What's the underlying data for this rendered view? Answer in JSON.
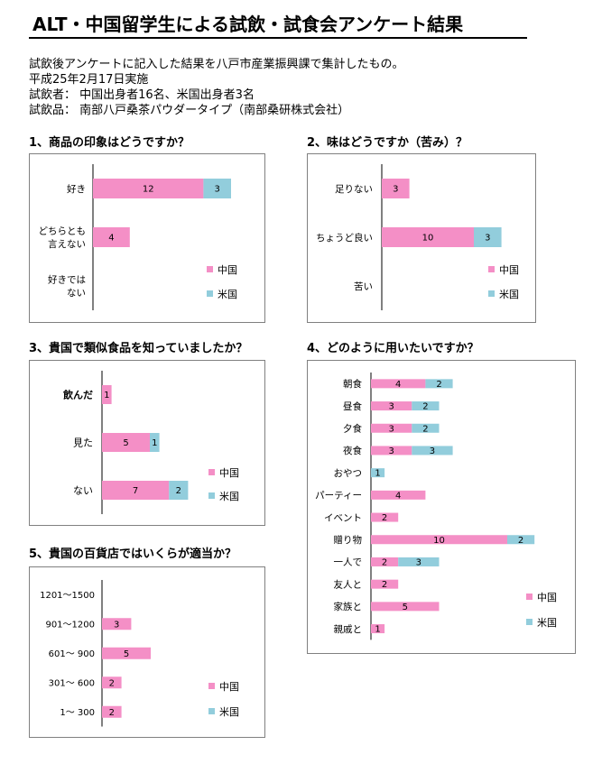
{
  "header": {
    "title": "ALT・中国留学生による試飲・試食会アンケート結果",
    "lines": [
      "試飲後アンケートに記入した結果を八戸市産業振興課で集計したもの。",
      "平成25年2月17日実施",
      "試飲者：  中国出身者16名、米国出身者3名",
      "試飲品：  南部八戸桑茶パウダータイプ（南部桑研株式会社）"
    ]
  },
  "colors": {
    "china": "#f48fc6",
    "usa": "#92cddc"
  },
  "chart_data": [
    {
      "type": "bar",
      "orientation": "horizontal",
      "stacked": true,
      "title": "1、商品の印象はどうですか？",
      "categories": [
        "好き",
        "どちらとも\n言えない",
        "好きでは\nない"
      ],
      "series": [
        {
          "name": "中国",
          "values": [
            12,
            4,
            0
          ]
        },
        {
          "name": "米国",
          "values": [
            3,
            0,
            0
          ]
        }
      ],
      "legend": "bottom-right"
    },
    {
      "type": "bar",
      "orientation": "horizontal",
      "stacked": true,
      "title": "2、味はどうですか（苦み）？",
      "categories": [
        "足りない",
        "ちょうど良い",
        "苦い"
      ],
      "series": [
        {
          "name": "中国",
          "values": [
            3,
            10,
            0
          ]
        },
        {
          "name": "米国",
          "values": [
            0,
            3,
            0
          ]
        }
      ],
      "legend": "bottom-right"
    },
    {
      "type": "bar",
      "orientation": "horizontal",
      "stacked": true,
      "title": "3、貴国で類似食品を知っていましたか？",
      "categories": [
        "飲んだ",
        "見た",
        "ない"
      ],
      "series": [
        {
          "name": "中国",
          "values": [
            1,
            5,
            7
          ]
        },
        {
          "name": "米国",
          "values": [
            0,
            1,
            2
          ]
        }
      ],
      "legend": "bottom-right"
    },
    {
      "type": "bar",
      "orientation": "horizontal",
      "stacked": true,
      "title": "4、どのように用いたいですか？",
      "categories": [
        "朝食",
        "昼食",
        "夕食",
        "夜食",
        "おやつ",
        "パーティー",
        "イベント",
        "贈り物",
        "一人で",
        "友人と",
        "家族と",
        "親戚と"
      ],
      "series": [
        {
          "name": "中国",
          "values": [
            4,
            3,
            3,
            3,
            0,
            4,
            2,
            10,
            2,
            2,
            5,
            1
          ]
        },
        {
          "name": "米国",
          "values": [
            2,
            2,
            2,
            3,
            1,
            0,
            0,
            2,
            3,
            0,
            0,
            0
          ]
        }
      ],
      "legend": "bottom-right"
    },
    {
      "type": "bar",
      "orientation": "horizontal",
      "stacked": true,
      "title": "5、貴国の百貨店ではいくらが適当か？",
      "categories": [
        "1201～1500",
        "901～1200",
        "601～ 900",
        "301～ 600",
        "1～ 300"
      ],
      "series": [
        {
          "name": "中国",
          "values": [
            0,
            3,
            5,
            2,
            2
          ]
        },
        {
          "name": "米国",
          "values": [
            0,
            0,
            0,
            0,
            0
          ]
        }
      ],
      "legend": "bottom-right"
    }
  ]
}
